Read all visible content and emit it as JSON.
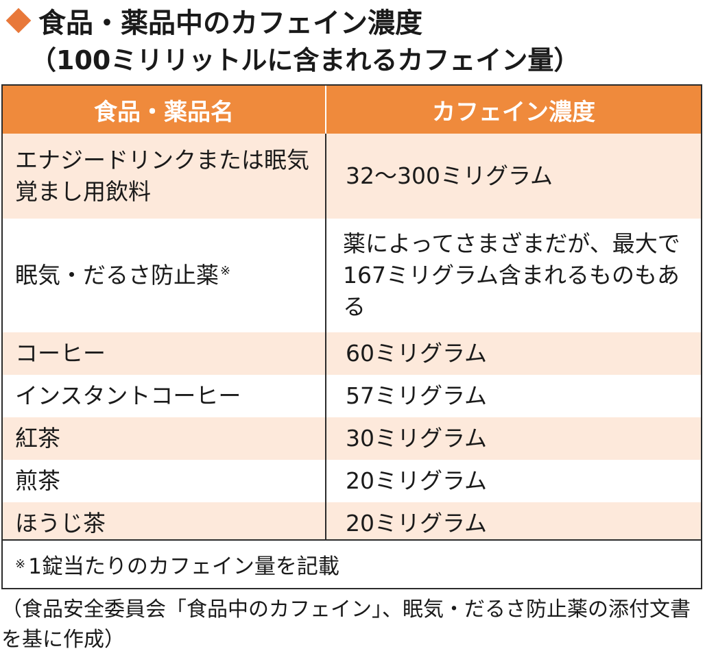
{
  "title": {
    "line1": "食品・薬品中のカフェイン濃度",
    "line2": "（100ミリリットルに含まれるカフェイン量）"
  },
  "table": {
    "headers": [
      "食品・薬品名",
      "カフェイン濃度"
    ],
    "rows": [
      {
        "name": "エナジードリンクまたは眠気覚まし用飲料",
        "value": "32〜300ミリグラム"
      },
      {
        "name": "眠気・だるさ防止薬",
        "name_mark": "※",
        "value": "薬によってさまざまだが、最大で167ミリグラム含まれるものもある"
      },
      {
        "name": "コーヒー",
        "value": "60ミリグラム"
      },
      {
        "name": "インスタントコーヒー",
        "value": "57ミリグラム"
      },
      {
        "name": "紅茶",
        "value": "30ミリグラム"
      },
      {
        "name": "煎茶",
        "value": "20ミリグラム"
      },
      {
        "name": "ほうじ茶",
        "value": "20ミリグラム"
      }
    ],
    "footnote": {
      "mark": "※",
      "text": "1錠当たりのカフェイン量を記載"
    }
  },
  "source": "（食品安全委員会「食品中のカフェイン」、眠気・だるさ防止薬の添付文書を基に作成）",
  "colors": {
    "accent": "#e8783a",
    "header_bg": "#ef8a3c",
    "row_alt_bg": "#fde9db"
  },
  "icons": {
    "title_marker": "orange-diamond-icon"
  }
}
